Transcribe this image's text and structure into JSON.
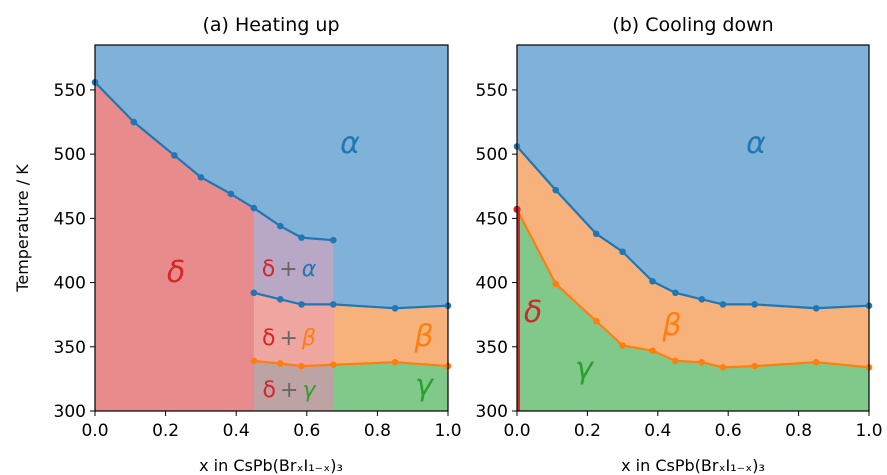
{
  "chart_data": [
    {
      "type": "area",
      "title": "(a) Heating up",
      "xlabel": "x in CsPb(BrₓI₁₋ₓ)₃",
      "ylabel": "Temperature / K",
      "xlim": [
        0.0,
        1.0
      ],
      "ylim": [
        300,
        585
      ],
      "xticks": [
        "0.0",
        "0.2",
        "0.4",
        "0.6",
        "0.8",
        "1.0"
      ],
      "yticks": [
        "300",
        "350",
        "400",
        "450",
        "500",
        "550"
      ],
      "grid": false,
      "series": [
        {
          "name": "δ → α",
          "color": "#1f77b4",
          "x": [
            0.0,
            0.11,
            0.225,
            0.3,
            0.385,
            0.45,
            0.525,
            0.585,
            0.675
          ],
          "y": [
            556,
            525,
            499,
            482,
            469,
            458,
            444,
            435,
            433
          ]
        },
        {
          "name": "β → α",
          "color": "#1f77b4",
          "x": [
            0.45,
            0.525,
            0.585,
            0.675,
            0.85,
            1.0
          ],
          "y": [
            392,
            387,
            383,
            383,
            380,
            382
          ]
        },
        {
          "name": "γ → β",
          "color": "#ff7f0e",
          "x": [
            0.45,
            0.525,
            0.585,
            0.675,
            0.85,
            1.0
          ],
          "y": [
            339,
            337,
            335,
            336,
            338,
            335
          ]
        }
      ],
      "regions": [
        {
          "label": "α",
          "color": "#1f77b4"
        },
        {
          "label": "δ",
          "color": "#d62728"
        },
        {
          "label": "β",
          "color": "#ff7f0e"
        },
        {
          "label": "γ",
          "color": "#2ca02c"
        }
      ],
      "mixed_regions": [
        {
          "first": "δ",
          "plus": "+",
          "second": "α"
        },
        {
          "first": "δ",
          "plus": "+",
          "second": "β"
        },
        {
          "first": "δ",
          "plus": "+",
          "second": "γ"
        }
      ]
    },
    {
      "type": "area",
      "title": "(b) Cooling down",
      "xlabel": "x in CsPb(BrₓI₁₋ₓ)₃",
      "ylabel": "",
      "xlim": [
        0.0,
        1.0
      ],
      "ylim": [
        300,
        585
      ],
      "xticks": [
        "0.0",
        "0.2",
        "0.4",
        "0.6",
        "0.8",
        "1.0"
      ],
      "yticks": [
        "300",
        "350",
        "400",
        "450",
        "500",
        "550"
      ],
      "grid": false,
      "series": [
        {
          "name": "α → β",
          "color": "#1f77b4",
          "x": [
            0.0,
            0.11,
            0.225,
            0.3,
            0.385,
            0.45,
            0.525,
            0.585,
            0.675,
            0.85,
            1.0
          ],
          "y": [
            506,
            472,
            438,
            424,
            401,
            392,
            387,
            383,
            383,
            380,
            382
          ]
        },
        {
          "name": "β → γ",
          "color": "#ff7f0e",
          "x": [
            0.0,
            0.11,
            0.225,
            0.3,
            0.385,
            0.45,
            0.525,
            0.585,
            0.675,
            0.85,
            1.0
          ],
          "y": [
            457,
            399,
            370,
            351,
            347,
            339,
            338,
            334,
            335,
            338,
            334
          ]
        },
        {
          "name": "γ → δ",
          "color": "#d62728",
          "x": [
            0.0,
            0.0
          ],
          "y": [
            300,
            457
          ]
        }
      ],
      "regions": [
        {
          "label": "α",
          "color": "#1f77b4"
        },
        {
          "label": "β",
          "color": "#ff7f0e"
        },
        {
          "label": "γ",
          "color": "#2ca02c"
        },
        {
          "label": "δ",
          "color": "#d62728"
        }
      ]
    }
  ]
}
